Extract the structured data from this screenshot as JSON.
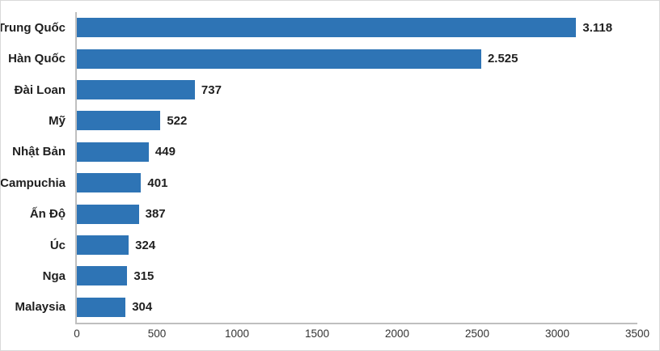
{
  "chart_data": {
    "type": "bar",
    "orientation": "horizontal",
    "title": "",
    "xlabel": "",
    "ylabel": "",
    "categories": [
      "Trung Quốc",
      "Hàn Quốc",
      "Đài Loan",
      "Mỹ",
      "Nhật Bản",
      "Campuchia",
      "Ấn Độ",
      "Úc",
      "Nga",
      "Malaysia"
    ],
    "values": [
      3118,
      2525,
      737,
      522,
      449,
      401,
      387,
      324,
      315,
      304
    ],
    "value_labels": [
      "3.118",
      "2.525",
      "737",
      "522",
      "449",
      "401",
      "387",
      "324",
      "315",
      "304"
    ],
    "xlim": [
      0,
      3500
    ],
    "x_ticks": [
      0,
      500,
      1000,
      1500,
      2000,
      2500,
      3000,
      3500
    ],
    "x_tick_labels": [
      "0",
      "500",
      "1000",
      "1500",
      "2000",
      "2500",
      "3000",
      "3500"
    ],
    "grid": false,
    "legend": false,
    "bar_color": "#2E74B5",
    "data_label_color": "#1F1F1F",
    "category_label_color": "#1F1F1F",
    "tick_label_color": "#333333",
    "axis_line_color": "#BFBFBF",
    "chart_border_color": "#D9D9D9",
    "background_color": "#FFFFFF"
  }
}
